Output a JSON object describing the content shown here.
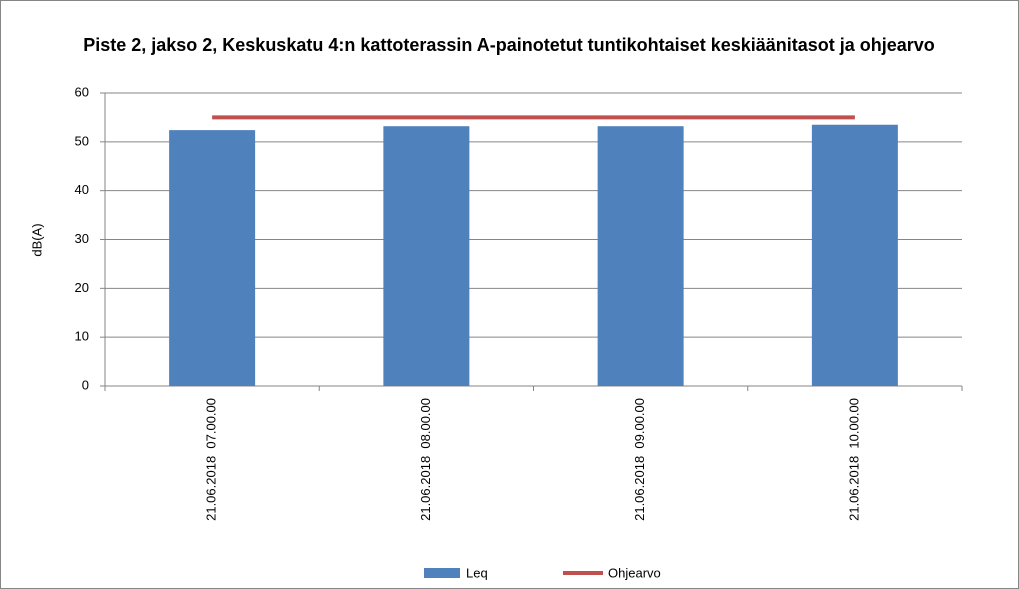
{
  "chart_data": {
    "type": "bar",
    "title": "Piste 2, jakso 2, Keskuskatu 4:n kattoterassin A-painotetut tuntikohtaiset keskiäänitasot ja ohjearvo",
    "y_label": "dB(A)",
    "categories": [
      "21.06.2018  07.00.00",
      "21.06.2018  08.00.00",
      "21.06.2018  09.00.00",
      "21.06.2018  10.00.00"
    ],
    "series": [
      {
        "name": "Leq",
        "type": "bar",
        "color": "#4f81bd",
        "values": [
          52.4,
          53.2,
          53.2,
          53.5
        ]
      },
      {
        "name": "Ohjearvo",
        "type": "line",
        "color": "#c0504d",
        "values": [
          55,
          55,
          55,
          55
        ]
      }
    ],
    "ylim": [
      0,
      60
    ],
    "yticks": [
      0,
      10,
      20,
      30,
      40,
      50,
      60
    ],
    "grid": true,
    "legend": "bottom"
  }
}
